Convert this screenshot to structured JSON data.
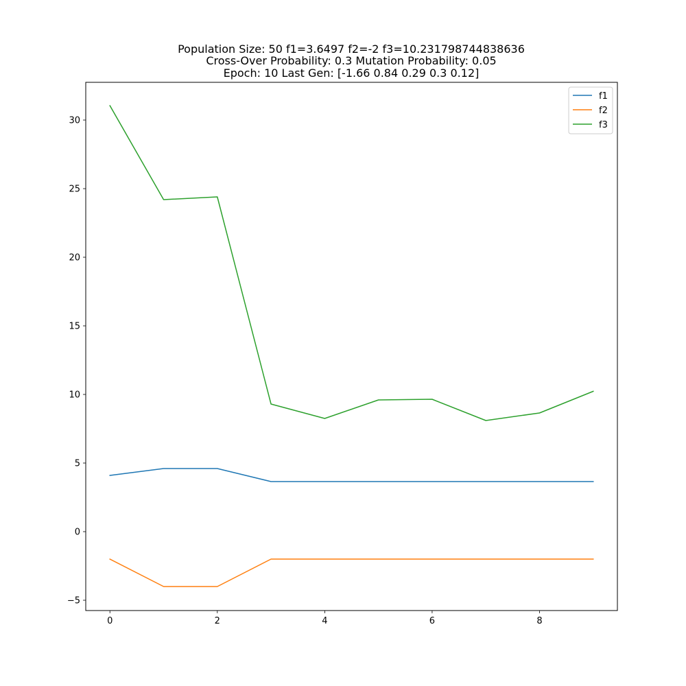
{
  "chart_data": {
    "type": "line",
    "title_lines": [
      "Population Size: 50 f1=3.6497 f2=-2 f3=10.231798744838636",
      "Cross-Over Probability: 0.3 Mutation Probability: 0.05",
      "Epoch: 10 Last Gen: [-1.66  0.84  0.29  0.3   0.12]"
    ],
    "xlabel": "",
    "ylabel": "",
    "x": [
      0,
      1,
      2,
      3,
      4,
      5,
      6,
      7,
      8,
      9
    ],
    "xlim": [
      -0.45,
      9.45
    ],
    "ylim": [
      -5.75,
      32.75
    ],
    "xticks": [
      0,
      2,
      4,
      6,
      8
    ],
    "xtick_labels": [
      "0",
      "2",
      "4",
      "6",
      "8"
    ],
    "yticks": [
      -5,
      0,
      5,
      10,
      15,
      20,
      25,
      30
    ],
    "ytick_labels": [
      "−5",
      "0",
      "5",
      "10",
      "15",
      "20",
      "25",
      "30"
    ],
    "grid": false,
    "legend_position": "top-right",
    "series": [
      {
        "name": "f1",
        "color": "#1f77b4",
        "values": [
          4.1,
          4.6,
          4.6,
          3.65,
          3.65,
          3.65,
          3.65,
          3.65,
          3.65,
          3.65
        ]
      },
      {
        "name": "f2",
        "color": "#ff7f0e",
        "values": [
          -2,
          -4,
          -4,
          -2,
          -2,
          -2,
          -2,
          -2,
          -2,
          -2
        ]
      },
      {
        "name": "f3",
        "color": "#2ca02c",
        "values": [
          31.05,
          24.2,
          24.4,
          9.3,
          8.25,
          9.6,
          9.65,
          8.1,
          8.65,
          10.23
        ]
      }
    ]
  }
}
